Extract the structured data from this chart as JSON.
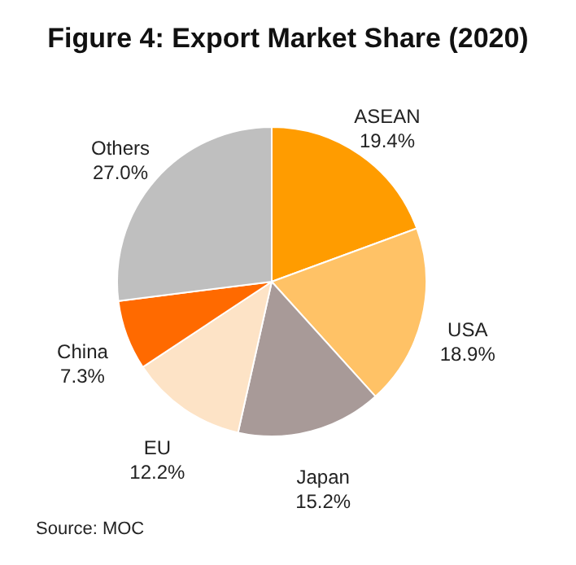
{
  "chart_data": {
    "type": "pie",
    "title": "Figure 4: Export Market Share (2020)",
    "categories": [
      "ASEAN",
      "USA",
      "Japan",
      "EU",
      "China",
      "Others"
    ],
    "values": [
      19.4,
      18.9,
      15.2,
      12.2,
      7.3,
      27.0
    ],
    "value_labels": [
      "19.4%",
      "18.9%",
      "15.2%",
      "12.2%",
      "7.3%",
      "27.0%"
    ],
    "colors": [
      "#ff9c00",
      "#ffc266",
      "#a89a98",
      "#fde3c6",
      "#ff6a00",
      "#bfbfbf"
    ],
    "annotations": [
      "Source:  MOC"
    ],
    "legend": false
  }
}
